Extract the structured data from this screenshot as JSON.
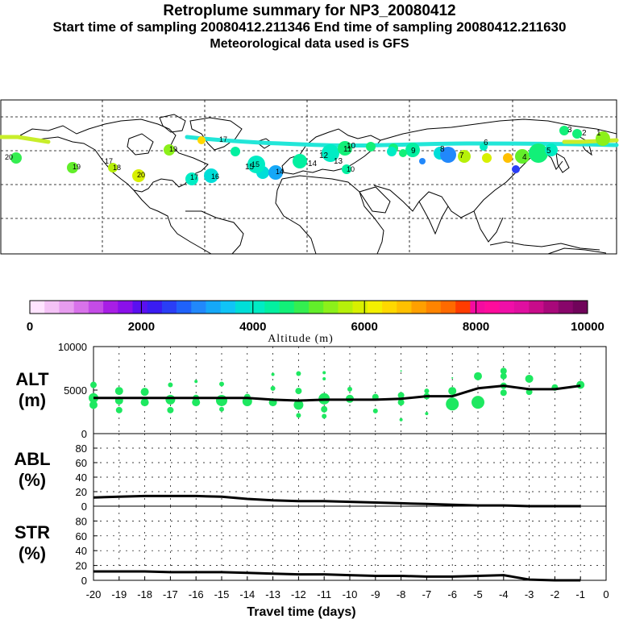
{
  "header": {
    "title": "Retroplume summary for NP3_20080412",
    "sampling": "Start time of sampling 20080412.211346     End time of sampling 20080412.211630",
    "met": "Meteorological data used is GFS"
  },
  "colors": {
    "track": "#22e6d8",
    "track_west": "#c8ee2a",
    "line": "#000000",
    "marker": "#1ee860",
    "land": "#000000",
    "grid": "#000000"
  },
  "colorbar": {
    "ticks": [
      "0",
      "2000",
      "4000",
      "6000",
      "8000",
      "10000"
    ],
    "label": "Altitude (m)",
    "colors": [
      "#ffe4ff",
      "#f4c2f6",
      "#e79cef",
      "#d872ea",
      "#c44ce6",
      "#a81ee5",
      "#8a10ea",
      "#5a10f0",
      "#3a1cf2",
      "#2a3ef6",
      "#1f62fa",
      "#2188fb",
      "#15a8f8",
      "#10c4f6",
      "#00ded8",
      "#00ecc4",
      "#02f0a0",
      "#12f078",
      "#34ee50",
      "#62ee2a",
      "#8cf01a",
      "#b6f00a",
      "#d8f000",
      "#f4f000",
      "#ffd800",
      "#ffc000",
      "#ffa000",
      "#ff8400",
      "#ff6a00",
      "#ff3c00",
      "#f40ba0",
      "#ff0c9c",
      "#f00fa8",
      "#e00fa0",
      "#c80c8a",
      "#a8087a",
      "#88066a",
      "#70045a"
    ]
  },
  "map_labels": {
    "west": [
      "20",
      "19",
      "17",
      "18",
      "20",
      "16",
      "17",
      "19",
      "15",
      "14",
      "10",
      "17"
    ],
    "track": [
      "15",
      "14",
      "13",
      "12",
      "11",
      "10",
      "9",
      "8",
      "7",
      "6",
      "5",
      "4",
      "3",
      "2",
      "1"
    ]
  },
  "chart_data": [
    {
      "type": "scatter+line",
      "name": "ALT",
      "ylabel": "ALT (m)",
      "ylabel_lines": [
        "ALT",
        "(m)"
      ],
      "ylim": [
        0,
        10000
      ],
      "yticks": [
        "10000",
        "5000",
        "0"
      ],
      "ytick_values": [
        10000,
        5000,
        0
      ],
      "line_x": [
        -20,
        -19,
        -18,
        -17,
        -16,
        -15,
        -14,
        -13,
        -12,
        -11,
        -10,
        -9,
        -8,
        -7,
        -6,
        -5,
        -4,
        -3,
        -2,
        -1
      ],
      "line_y": [
        4100,
        4100,
        4100,
        4100,
        4100,
        4100,
        4100,
        3900,
        3800,
        3900,
        3900,
        3900,
        4000,
        4300,
        4300,
        5200,
        5500,
        5100,
        5100,
        5500
      ],
      "scatter": [
        {
          "x": -20,
          "y": 5600,
          "s": 4
        },
        {
          "x": -20,
          "y": 4100,
          "s": 6
        },
        {
          "x": -20,
          "y": 3300,
          "s": 5
        },
        {
          "x": -19,
          "y": 4900,
          "s": 5
        },
        {
          "x": -19,
          "y": 3800,
          "s": 5
        },
        {
          "x": -19,
          "y": 2700,
          "s": 4
        },
        {
          "x": -18,
          "y": 4800,
          "s": 5
        },
        {
          "x": -18,
          "y": 3600,
          "s": 5
        },
        {
          "x": -17,
          "y": 5600,
          "s": 3
        },
        {
          "x": -17,
          "y": 3900,
          "s": 6
        },
        {
          "x": -17,
          "y": 2700,
          "s": 4
        },
        {
          "x": -16,
          "y": 6000,
          "s": 2
        },
        {
          "x": -16,
          "y": 4100,
          "s": 4
        },
        {
          "x": -16,
          "y": 3600,
          "s": 5
        },
        {
          "x": -15,
          "y": 5700,
          "s": 3
        },
        {
          "x": -15,
          "y": 3800,
          "s": 7
        },
        {
          "x": -15,
          "y": 2800,
          "s": 3
        },
        {
          "x": -14,
          "y": 4200,
          "s": 4
        },
        {
          "x": -14,
          "y": 3700,
          "s": 6
        },
        {
          "x": -13,
          "y": 6800,
          "s": 2
        },
        {
          "x": -13,
          "y": 5200,
          "s": 3
        },
        {
          "x": -13,
          "y": 3600,
          "s": 5
        },
        {
          "x": -12,
          "y": 6900,
          "s": 3
        },
        {
          "x": -12,
          "y": 4900,
          "s": 4
        },
        {
          "x": -12,
          "y": 3300,
          "s": 6
        },
        {
          "x": -12,
          "y": 2100,
          "s": 3
        },
        {
          "x": -11,
          "y": 7000,
          "s": 2
        },
        {
          "x": -11,
          "y": 6300,
          "s": 2
        },
        {
          "x": -11,
          "y": 4000,
          "s": 7
        },
        {
          "x": -11,
          "y": 2800,
          "s": 4
        },
        {
          "x": -11,
          "y": 2000,
          "s": 3
        },
        {
          "x": -10,
          "y": 5100,
          "s": 3
        },
        {
          "x": -10,
          "y": 4000,
          "s": 5
        },
        {
          "x": -9,
          "y": 4200,
          "s": 4
        },
        {
          "x": -9,
          "y": 2600,
          "s": 3
        },
        {
          "x": -8,
          "y": 7200,
          "s": 1
        },
        {
          "x": -8,
          "y": 4400,
          "s": 4
        },
        {
          "x": -8,
          "y": 3600,
          "s": 4
        },
        {
          "x": -8,
          "y": 1600,
          "s": 2
        },
        {
          "x": -7,
          "y": 4900,
          "s": 3
        },
        {
          "x": -7,
          "y": 4300,
          "s": 4
        },
        {
          "x": -7,
          "y": 2300,
          "s": 2
        },
        {
          "x": -6,
          "y": 6400,
          "s": 1
        },
        {
          "x": -6,
          "y": 4900,
          "s": 5
        },
        {
          "x": -6,
          "y": 3400,
          "s": 8
        },
        {
          "x": -5,
          "y": 6600,
          "s": 5
        },
        {
          "x": -5,
          "y": 3600,
          "s": 8
        },
        {
          "x": -4,
          "y": 7200,
          "s": 4
        },
        {
          "x": -4,
          "y": 6600,
          "s": 4
        },
        {
          "x": -4,
          "y": 5500,
          "s": 4
        },
        {
          "x": -4,
          "y": 4700,
          "s": 4
        },
        {
          "x": -3,
          "y": 6300,
          "s": 5
        },
        {
          "x": -3,
          "y": 4800,
          "s": 4
        },
        {
          "x": -2,
          "y": 5300,
          "s": 4
        },
        {
          "x": -1,
          "y": 5600,
          "s": 5
        }
      ]
    },
    {
      "type": "line",
      "name": "ABL",
      "ylabel": "ABL (%)",
      "ylabel_lines": [
        "ABL",
        "(%)"
      ],
      "ylim": [
        0,
        100
      ],
      "yticks": [
        "80",
        "60",
        "40",
        "20",
        "0"
      ],
      "ytick_values": [
        80,
        60,
        40,
        20,
        0
      ],
      "x": [
        -20,
        -19,
        -18,
        -17,
        -16,
        -15,
        -14,
        -13,
        -12,
        -11,
        -10,
        -9,
        -8,
        -7,
        -6,
        -5,
        -4,
        -3,
        -2,
        -1
      ],
      "y": [
        12,
        13,
        14,
        14,
        14,
        13,
        10,
        8,
        7,
        7,
        6,
        5,
        4,
        3,
        2,
        1,
        1,
        0,
        0,
        0
      ]
    },
    {
      "type": "line",
      "name": "STR",
      "ylabel": "STR (%)",
      "ylabel_lines": [
        "STR",
        "(%)"
      ],
      "ylim": [
        0,
        100
      ],
      "yticks": [
        "80",
        "60",
        "40",
        "20",
        "0"
      ],
      "ytick_values": [
        80,
        60,
        40,
        20,
        0
      ],
      "xlabel": "Travel time (days)",
      "xticks": [
        "-20",
        "-19",
        "-18",
        "-17",
        "-16",
        "-15",
        "-14",
        "-13",
        "-12",
        "-11",
        "-10",
        "-9",
        "-8",
        "-7",
        "-6",
        "-5",
        "-4",
        "-3",
        "-2",
        "-1",
        "0"
      ],
      "xtick_values": [
        -20,
        -19,
        -18,
        -17,
        -16,
        -15,
        -14,
        -13,
        -12,
        -11,
        -10,
        -9,
        -8,
        -7,
        -6,
        -5,
        -4,
        -3,
        -2,
        -1,
        0
      ],
      "x": [
        -20,
        -19,
        -18,
        -17,
        -16,
        -15,
        -14,
        -13,
        -12,
        -11,
        -10,
        -9,
        -8,
        -7,
        -6,
        -5,
        -4,
        -3,
        -2,
        -1
      ],
      "y": [
        12,
        12,
        12,
        11,
        11,
        11,
        10,
        9,
        8,
        8,
        7,
        6,
        6,
        5,
        5,
        6,
        7,
        1,
        0,
        0
      ]
    }
  ]
}
